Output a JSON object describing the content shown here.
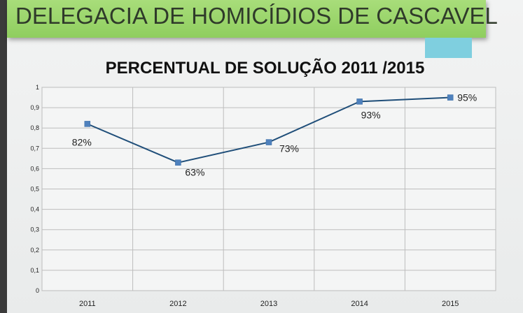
{
  "header": {
    "title": "DELEGACIA DE HOMICÍDIOS DE CASCAVEL"
  },
  "colors": {
    "banner": "#95d266",
    "accent": "#7fcfdf",
    "series": "#1f4e79",
    "marker": "#4f81bd"
  },
  "chart_data": {
    "type": "line",
    "title": "PERCENTUAL DE SOLUÇÃO 2011 /2015",
    "categories": [
      "2011",
      "2012",
      "2013",
      "2014",
      "2015"
    ],
    "series": [
      {
        "values": [
          0.82,
          0.63,
          0.73,
          0.93,
          0.95
        ]
      }
    ],
    "data_labels": [
      "82%",
      "63%",
      "73%",
      "93%",
      "95%"
    ],
    "y_ticks": [
      "0",
      "0,1",
      "0,2",
      "0,3",
      "0,4",
      "0,5",
      "0,6",
      "0,7",
      "0,8",
      "0,9",
      "1"
    ],
    "ylim": [
      0,
      1
    ],
    "grid": true,
    "legend": "none"
  }
}
